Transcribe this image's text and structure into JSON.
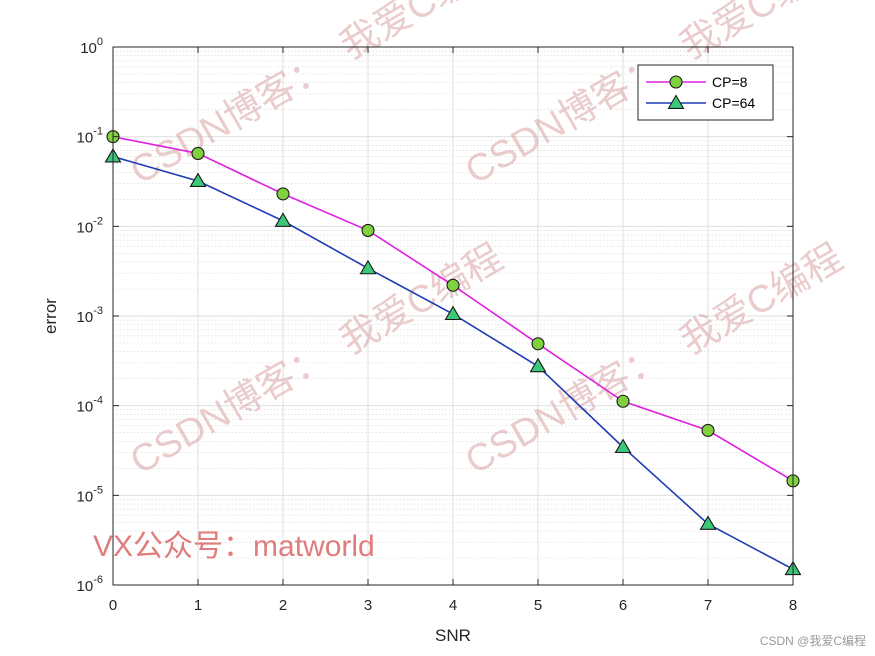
{
  "chart_data": {
    "type": "line",
    "xlabel": "SNR",
    "ylabel": "error",
    "xlim": [
      0,
      8
    ],
    "ylim": [
      1e-06,
      1
    ],
    "yscale": "log",
    "grid": true,
    "legend_position": "top-right",
    "x": [
      0,
      1,
      2,
      3,
      4,
      5,
      6,
      7,
      8
    ],
    "x_ticks": [
      "0",
      "1",
      "2",
      "3",
      "4",
      "5",
      "6",
      "7",
      "8"
    ],
    "y_ticks": [
      {
        "value": 1,
        "base": "10",
        "exp": "0"
      },
      {
        "value": 0.1,
        "base": "10",
        "exp": "-1"
      },
      {
        "value": 0.01,
        "base": "10",
        "exp": "-2"
      },
      {
        "value": 0.001,
        "base": "10",
        "exp": "-3"
      },
      {
        "value": 0.0001,
        "base": "10",
        "exp": "-4"
      },
      {
        "value": 1e-05,
        "base": "10",
        "exp": "-5"
      },
      {
        "value": 1e-06,
        "base": "10",
        "exp": "-6"
      }
    ],
    "series": [
      {
        "name": "CP=8",
        "line_color": "#e020e0",
        "marker": "circle",
        "marker_fill": "#80d040",
        "values": [
          0.1,
          0.065,
          0.023,
          0.009,
          0.0022,
          0.00049,
          0.000112,
          5.3e-05,
          1.45e-05
        ]
      },
      {
        "name": "CP=64",
        "line_color": "#1f3cb4",
        "marker": "triangle",
        "marker_fill": "#3cc878",
        "values": [
          0.06,
          0.032,
          0.0115,
          0.0034,
          0.00105,
          0.000275,
          3.45e-05,
          4.8e-06,
          1.5e-06
        ]
      }
    ]
  },
  "watermarks": {
    "blog": "CSDN博客：",
    "author": "我爱C编程",
    "vx": "VX公众号：matworld",
    "credit": "CSDN @我爱C编程"
  }
}
